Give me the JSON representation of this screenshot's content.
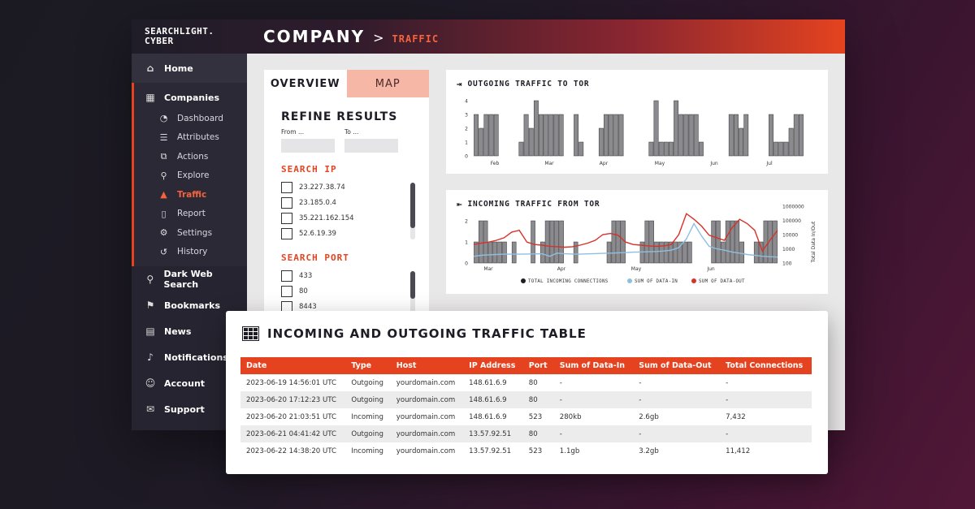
{
  "brand": {
    "line1": "SEARCHLIGHT.",
    "line2": "CYBER"
  },
  "breadcrumb": {
    "main": "COMPANY",
    "sep": ">",
    "sub": "TRAFFIC"
  },
  "sidebar": {
    "home": "Home",
    "companies": "Companies",
    "sub_items": [
      {
        "label": "Dashboard",
        "icon": "dashboard-icon"
      },
      {
        "label": "Attributes",
        "icon": "list-icon"
      },
      {
        "label": "Actions",
        "icon": "actions-icon"
      },
      {
        "label": "Explore",
        "icon": "search-icon"
      },
      {
        "label": "Traffic",
        "icon": "traffic-cone-icon"
      },
      {
        "label": "Report",
        "icon": "document-icon"
      },
      {
        "label": "Settings",
        "icon": "gear-icon"
      },
      {
        "label": "History",
        "icon": "history-icon"
      }
    ],
    "lower": [
      {
        "label": "Dark Web Search",
        "icon": "search-icon"
      },
      {
        "label": "Bookmarks",
        "icon": "bookmark-icon"
      },
      {
        "label": "News",
        "icon": "news-icon"
      },
      {
        "label": "Notifications",
        "icon": "bell-icon"
      },
      {
        "label": "Account",
        "icon": "user-icon"
      },
      {
        "label": "Support",
        "icon": "chat-icon"
      }
    ]
  },
  "filter": {
    "tab_overview": "OVERVIEW",
    "tab_map": "MAP",
    "refine_title": "REFINE RESULTS",
    "from_label": "From ...",
    "to_label": "To ...",
    "search_ip_title": "SEARCH IP",
    "ips": [
      "23.227.38.74",
      "23.185.0.4",
      "35.221.162.154",
      "52.6.19.39"
    ],
    "search_port_title": "SEARCH PORT",
    "ports": [
      "433",
      "80",
      "8443"
    ]
  },
  "outgoing_chart": {
    "title": "OUTGOING TRAFFIC TO TOR",
    "ylim": [
      0,
      4
    ],
    "yticks": [
      "0",
      "1",
      "2",
      "3",
      "4"
    ],
    "xticks": [
      "Feb",
      "Mar",
      "Apr",
      "May",
      "Jun",
      "Jul"
    ]
  },
  "incoming_chart": {
    "title": "INCOMING TRAFFIC FROM TOR",
    "yticks_left": [
      "0",
      "1",
      "2"
    ],
    "yticks_right": [
      "100",
      "1000",
      "10000",
      "100000",
      "1000000"
    ],
    "ylabel_right": "Total Data In/Out",
    "xticks": [
      "Mar",
      "Apr",
      "May",
      "Jun"
    ],
    "legend": [
      {
        "label": "TOTAL INCOMING CONNECTIONS",
        "color": "#1e1d25"
      },
      {
        "label": "SUM OF DATA-IN",
        "color": "#8fbfe0"
      },
      {
        "label": "SUM OF DATA-OUT",
        "color": "#d8312a"
      }
    ]
  },
  "chart_data": [
    {
      "type": "bar",
      "title": "OUTGOING TRAFFIC TO TOR",
      "ylim": [
        0,
        4
      ],
      "values": [
        3,
        2,
        3,
        3,
        3,
        0,
        0,
        0,
        0,
        1,
        3,
        2,
        4,
        3,
        3,
        3,
        3,
        3,
        0,
        0,
        3,
        1,
        0,
        0,
        0,
        2,
        3,
        3,
        3,
        3,
        0,
        0,
        0,
        0,
        0,
        1,
        4,
        1,
        1,
        1,
        4,
        3,
        3,
        3,
        3,
        1,
        0,
        0,
        0,
        0,
        0,
        3,
        3,
        2,
        3,
        0,
        0,
        0,
        0,
        3,
        1,
        1,
        1,
        2,
        3,
        3
      ]
    },
    {
      "type": "bar",
      "title": "INCOMING TRAFFIC FROM TOR",
      "ylim": [
        0,
        2
      ],
      "series": [
        {
          "name": "TOTAL INCOMING CONNECTIONS",
          "values": [
            1,
            2,
            2,
            1,
            1,
            1,
            1,
            0,
            1,
            0,
            0,
            0,
            2,
            0,
            1,
            2,
            2,
            2,
            2,
            0,
            0,
            1,
            0,
            0,
            0,
            0,
            0,
            0,
            1,
            2,
            2,
            2,
            0,
            0,
            0,
            1,
            2,
            2,
            1,
            1,
            1,
            1,
            1,
            1,
            1,
            1,
            0,
            0,
            0,
            0,
            2,
            2,
            1,
            2,
            2,
            2,
            1,
            0,
            0,
            1,
            1,
            2,
            2,
            2
          ]
        },
        {
          "name": "SUM OF DATA-IN",
          "values": [
            300,
            350,
            380,
            400,
            420,
            420,
            420,
            430,
            440,
            450,
            300,
            500,
            450,
            430,
            420,
            440,
            460,
            480,
            500,
            520,
            540,
            580,
            600,
            620,
            650,
            700,
            800,
            1200,
            5000,
            60000,
            8000,
            1500,
            1000,
            800,
            600,
            500,
            400,
            350,
            300,
            280,
            260
          ]
        },
        {
          "name": "SUM OF DATA-OUT",
          "values": [
            2000,
            2500,
            3000,
            4000,
            6000,
            15000,
            20000,
            3000,
            2000,
            1800,
            1500,
            1400,
            1300,
            1400,
            1800,
            2500,
            4000,
            10000,
            12000,
            9000,
            3000,
            2000,
            1800,
            1600,
            1500,
            1600,
            2000,
            10000,
            300000,
            120000,
            40000,
            9000,
            6000,
            4000,
            30000,
            120000,
            60000,
            20000,
            700,
            4000,
            20000
          ]
        }
      ]
    }
  ],
  "table": {
    "title": "INCOMING AND OUTGOING TRAFFIC TABLE",
    "headers": [
      "Date",
      "Type",
      "Host",
      "IP Address",
      "Port",
      "Sum of Data-In",
      "Sum of Data-Out",
      "Total Connections"
    ],
    "rows": [
      [
        "2023-06-19 14:56:01 UTC",
        "Outgoing",
        "yourdomain.com",
        "148.61.6.9",
        "80",
        "-",
        "-",
        "-"
      ],
      [
        "2023-06-20 17:12:23 UTC",
        "Outgoing",
        "yourdomain.com",
        "148.61.6.9",
        "80",
        "-",
        "-",
        "-"
      ],
      [
        "2023-06-20 21:03:51 UTC",
        "Incoming",
        "yourdomain.com",
        "148.61.6.9",
        "523",
        "280kb",
        "2.6gb",
        "7,432"
      ],
      [
        "2023-06-21 04:41:42 UTC",
        "Outgoing",
        "yourdomain.com",
        "13.57.92.51",
        "80",
        "-",
        "-",
        "-"
      ],
      [
        "2023-06-22 14:38:20 UTC",
        "Incoming",
        "yourdomain.com",
        "13.57.92.51",
        "523",
        "1.1gb",
        "3.2gb",
        "11,412"
      ]
    ]
  }
}
